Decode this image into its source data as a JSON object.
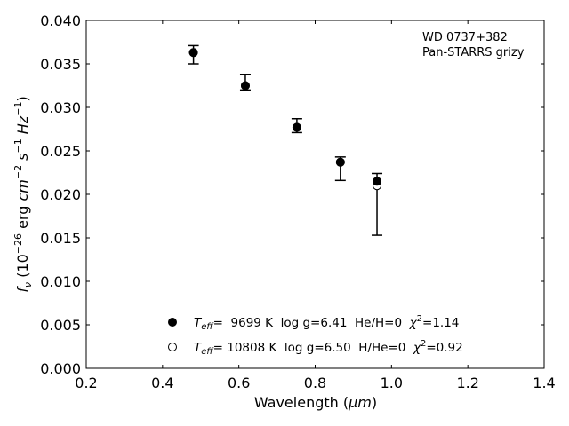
{
  "chart_data": {
    "type": "scatter",
    "xlabel_main": "Wavelength (",
    "xlabel_unit": "μm",
    "xlabel_close": ")",
    "ylabel": "f_ν (10^-26 erg cm^-2 s^-1 Hz^-1)",
    "ylabel_f": "f",
    "ylabel_nu": "ν",
    "ylabel_open": " (10",
    "ylabel_exp1": "−26",
    "ylabel_erg": " erg ",
    "ylabel_cm": "cm",
    "ylabel_exp2": "−2",
    "ylabel_s": " s",
    "ylabel_exp3": "−1",
    "ylabel_hz": " Hz",
    "ylabel_exp4": "−1",
    "ylabel_close": ")",
    "xlim": [
      0.2,
      1.4
    ],
    "ylim": [
      0.0,
      0.04
    ],
    "xticks": [
      "0.2",
      "0.4",
      "0.6",
      "0.8",
      "1.0",
      "1.2",
      "1.4"
    ],
    "yticks": [
      "0.000",
      "0.005",
      "0.010",
      "0.015",
      "0.020",
      "0.025",
      "0.030",
      "0.035",
      "0.040"
    ],
    "annotation": [
      "WD 0737+382",
      "Pan-STARRS grizy"
    ],
    "observed": {
      "x": [
        0.481,
        0.617,
        0.752,
        0.866,
        0.962
      ],
      "y": [
        0.0363,
        0.0325,
        0.0277,
        0.0237,
        0.021
      ],
      "err_low": [
        0.035,
        0.032,
        0.0271,
        0.0216,
        0.0153
      ],
      "err_high": [
        0.0371,
        0.0338,
        0.0287,
        0.0243,
        0.0224
      ]
    },
    "series": [
      {
        "marker": "filled",
        "x": [
          0.481,
          0.617,
          0.752,
          0.866,
          0.962
        ],
        "y": [
          0.0363,
          0.0325,
          0.0277,
          0.0237,
          0.0215
        ]
      },
      {
        "marker": "open",
        "x": [
          0.481,
          0.617,
          0.752,
          0.866,
          0.962
        ],
        "y": [
          0.0363,
          0.0325,
          0.0277,
          0.0237,
          0.021
        ]
      }
    ],
    "legend": [
      {
        "marker": "filled",
        "teff_label": "T",
        "teff_sub": "eff",
        "text": "=  9699 K  log g=6.41  He/H=0  ",
        "chi": "χ",
        "chi_sup": "2",
        "chi_val": "=1.14"
      },
      {
        "marker": "open",
        "teff_label": "T",
        "teff_sub": "eff",
        "text": "= 10808 K  log g=6.50  H/He=0  ",
        "chi": "χ",
        "chi_sup": "2",
        "chi_val": "=0.92"
      }
    ],
    "legend_position": "lower-center",
    "grid": false,
    "colors": {
      "marker": "#000000",
      "axes": "#000000",
      "background": "#ffffff"
    }
  }
}
